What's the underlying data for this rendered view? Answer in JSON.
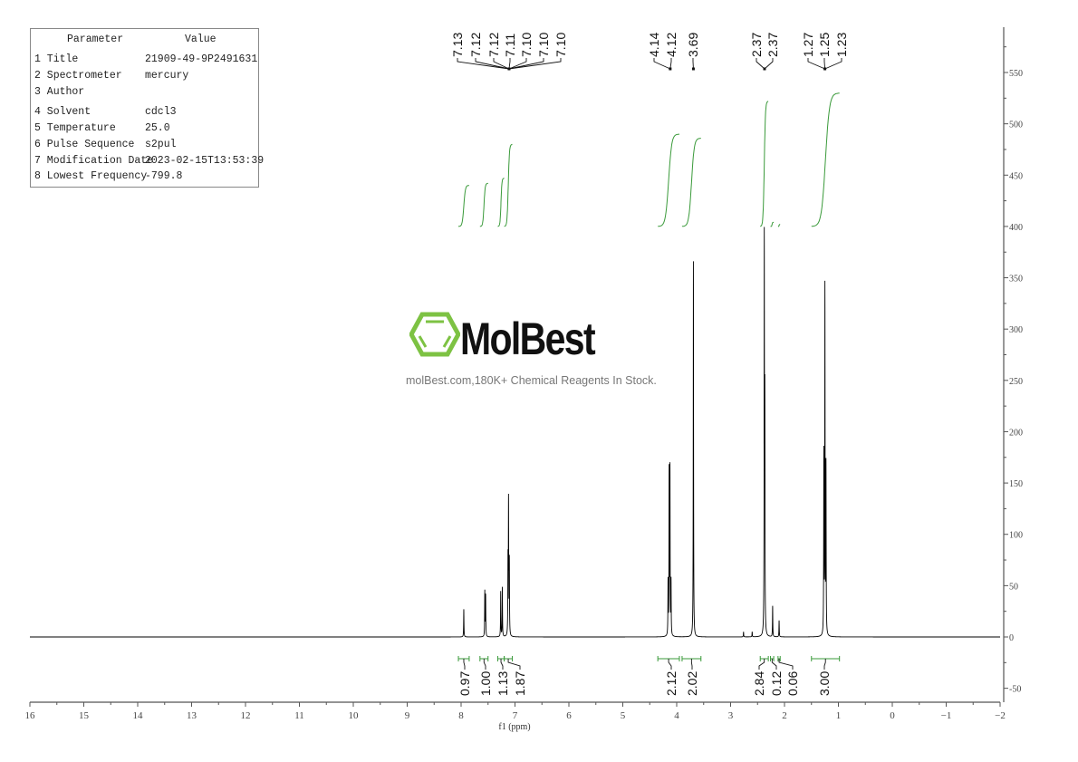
{
  "parameters": {
    "header": {
      "parameter": "Parameter",
      "value": "Value"
    },
    "rows": [
      {
        "label": "1 Title",
        "value": "21909-49-9P2491631"
      },
      {
        "label": "2 Spectrometer",
        "value": "mercury"
      },
      {
        "label": "3 Author",
        "value": ""
      },
      {
        "label": "4 Solvent",
        "value": "cdcl3"
      },
      {
        "label": "5 Temperature",
        "value": "25.0"
      },
      {
        "label": "6 Pulse Sequence",
        "value": "s2pul"
      },
      {
        "label": "7 Modification Date",
        "value": "2023-02-15T13:53:39"
      },
      {
        "label": "8 Lowest Frequency",
        "value": "-799.8"
      }
    ]
  },
  "watermark": {
    "brand": "MolBest",
    "tagline": "molBest.com,180K+ Chemical Reagents In Stock.",
    "logo_color": "#7dc243"
  },
  "chart_data": {
    "type": "line",
    "xlabel": "f1 (ppm)",
    "ylabel": "",
    "xlim": [
      16,
      -2
    ],
    "ylim": [
      -50,
      590
    ],
    "x_reversed": true,
    "x_ticks": [
      16,
      15,
      14,
      13,
      12,
      11,
      10,
      9,
      8,
      7,
      6,
      5,
      4,
      3,
      2,
      1,
      0,
      -1,
      -2
    ],
    "x_tick_labels": [
      "16",
      "15",
      "14",
      "13",
      "12",
      "11",
      "10",
      "9",
      "8",
      "7",
      "6",
      "5",
      "4",
      "3",
      "2",
      "1",
      "0",
      "−1",
      "−2"
    ],
    "y_ticks": [
      -50,
      0,
      50,
      100,
      150,
      200,
      250,
      300,
      350,
      400,
      450,
      500,
      550
    ],
    "y_tick_labels": [
      "-50",
      "0",
      "50",
      "100",
      "150",
      "200",
      "250",
      "300",
      "350",
      "400",
      "450",
      "500",
      "550"
    ],
    "y_axis_side": "right",
    "grid": false,
    "line_color": "#000000",
    "integral_color": "#3a9a3a",
    "peaks": [
      {
        "ppm": 7.95,
        "height": 27
      },
      {
        "ppm": 7.56,
        "height": 44
      },
      {
        "ppm": 7.545,
        "height": 40
      },
      {
        "ppm": 7.265,
        "height": 44
      },
      {
        "ppm": 7.235,
        "height": 48
      },
      {
        "ppm": 7.13,
        "height": 70
      },
      {
        "ppm": 7.12,
        "height": 128
      },
      {
        "ppm": 7.105,
        "height": 72
      },
      {
        "ppm": 4.16,
        "height": 52
      },
      {
        "ppm": 4.14,
        "height": 158
      },
      {
        "ppm": 4.125,
        "height": 160
      },
      {
        "ppm": 4.105,
        "height": 52
      },
      {
        "ppm": 3.69,
        "height": 366
      },
      {
        "ppm": 2.76,
        "height": 5
      },
      {
        "ppm": 2.6,
        "height": 5
      },
      {
        "ppm": 2.375,
        "height": 376
      },
      {
        "ppm": 2.365,
        "height": 215
      },
      {
        "ppm": 2.22,
        "height": 30
      },
      {
        "ppm": 2.1,
        "height": 16
      },
      {
        "ppm": 1.27,
        "height": 175
      },
      {
        "ppm": 1.25,
        "height": 337
      },
      {
        "ppm": 1.23,
        "height": 163
      }
    ],
    "peak_labels": [
      {
        "group": [
          7.13,
          7.12,
          7.12,
          7.11,
          7.1,
          7.1,
          7.1
        ],
        "labels": [
          "7.13",
          "7.12",
          "7.12",
          "7.11",
          "7.10",
          "7.10",
          "7.10"
        ],
        "anchor_ppm": 7.11
      },
      {
        "group": [
          4.14,
          4.12
        ],
        "labels": [
          "4.14",
          "4.12"
        ],
        "anchor_ppm": 4.12
      },
      {
        "group": [
          3.69
        ],
        "labels": [
          "3.69"
        ],
        "anchor_ppm": 3.69
      },
      {
        "group": [
          2.37,
          2.37
        ],
        "labels": [
          "2.37",
          "2.37"
        ],
        "anchor_ppm": 2.37
      },
      {
        "group": [
          1.27,
          1.25,
          1.23
        ],
        "labels": [
          "1.27",
          "1.25",
          "1.23"
        ],
        "anchor_ppm": 1.25
      }
    ],
    "integrals": [
      {
        "from": 8.05,
        "to": 7.85,
        "value": "0.97",
        "start": 400,
        "end": 440
      },
      {
        "from": 7.65,
        "to": 7.5,
        "value": "1.00",
        "start": 400,
        "end": 442
      },
      {
        "from": 7.32,
        "to": 7.2,
        "value": "1.13",
        "start": 400,
        "end": 447
      },
      {
        "from": 7.2,
        "to": 7.05,
        "value": "1.87",
        "start": 400,
        "end": 480
      },
      {
        "from": 4.35,
        "to": 3.95,
        "value": "2.12",
        "start": 400,
        "end": 490
      },
      {
        "from": 3.9,
        "to": 3.55,
        "value": "2.02",
        "start": 400,
        "end": 486
      },
      {
        "from": 2.45,
        "to": 2.3,
        "value": "2.84",
        "start": 400,
        "end": 522
      },
      {
        "from": 2.26,
        "to": 2.2,
        "value": "0.12",
        "start": 400,
        "end": 404
      },
      {
        "from": 2.12,
        "to": 2.08,
        "value": "0.06",
        "start": 400,
        "end": 402
      },
      {
        "from": 1.5,
        "to": 0.98,
        "value": "3.00",
        "start": 400,
        "end": 530
      }
    ]
  }
}
